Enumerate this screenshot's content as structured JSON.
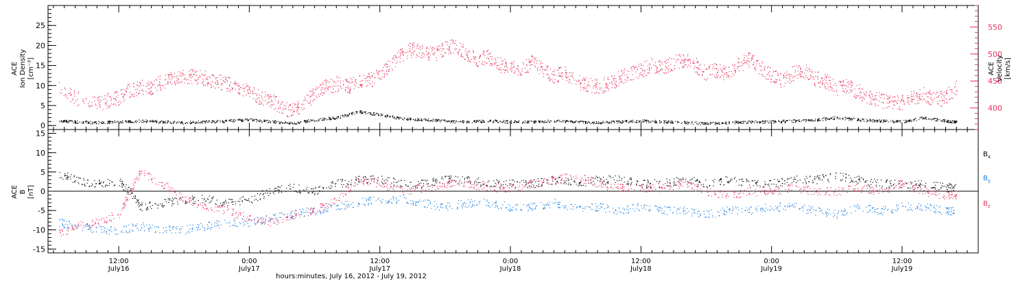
{
  "chart_data": [
    {
      "type": "scatter",
      "panel": "top",
      "left_axis": {
        "label_lines": [
          "ACE",
          "Ion Density",
          "[cm⁻³]"
        ],
        "ylim": [
          -1,
          30
        ],
        "ticks": [
          0,
          5,
          10,
          15,
          20,
          25
        ],
        "color": "#000000"
      },
      "right_axis": {
        "label_lines": [
          "ACE",
          "Velocity",
          "[km/s]"
        ],
        "ylim": [
          360,
          590
        ],
        "ticks": [
          400,
          450,
          500,
          550
        ],
        "color": "#e8315f"
      },
      "series": [
        {
          "color": "#e8315f",
          "axis": "right",
          "x": [
            6.5,
            8,
            10,
            11,
            12,
            13,
            14,
            15,
            16,
            17,
            18,
            19,
            20,
            21,
            22,
            23,
            24,
            25,
            26,
            27,
            28,
            29,
            30,
            31,
            32,
            33,
            34,
            35,
            36,
            37,
            38,
            39,
            40,
            41,
            42,
            43,
            44,
            45,
            46,
            47,
            48,
            49,
            50,
            51,
            52,
            53,
            54,
            55,
            56,
            57,
            58,
            59,
            60,
            61,
            62,
            63,
            64,
            65,
            66,
            67,
            68,
            69,
            70,
            71,
            72,
            73,
            74,
            75,
            76,
            77,
            78,
            79,
            80,
            81,
            82,
            83,
            84,
            85,
            86,
            87,
            88,
            89
          ],
          "y": [
            436,
            420,
            408,
            414,
            420,
            432,
            440,
            438,
            450,
            455,
            460,
            458,
            455,
            450,
            445,
            440,
            430,
            420,
            415,
            400,
            395,
            410,
            425,
            440,
            445,
            440,
            450,
            452,
            460,
            480,
            500,
            510,
            505,
            500,
            512,
            515,
            500,
            490,
            495,
            480,
            475,
            470,
            485,
            470,
            460,
            465,
            450,
            445,
            440,
            445,
            455,
            465,
            470,
            480,
            475,
            485,
            490,
            480,
            465,
            470,
            465,
            480,
            490,
            475,
            460,
            450,
            465,
            470,
            455,
            450,
            435,
            440,
            430,
            420,
            415,
            410,
            410,
            420,
            425,
            415,
            420,
            440
          ]
        },
        {
          "color": "#000000",
          "axis": "left",
          "x": [
            6.5,
            8,
            10,
            12,
            14,
            16,
            18,
            20,
            22,
            24,
            26,
            28,
            30,
            32,
            34,
            36,
            38,
            40,
            42,
            44,
            46,
            48,
            50,
            52,
            54,
            56,
            58,
            60,
            62,
            64,
            66,
            68,
            70,
            72,
            74,
            76,
            78,
            80,
            82,
            84,
            86,
            88,
            89
          ],
          "y": [
            1.2,
            1.0,
            0.8,
            1.0,
            1.2,
            1.0,
            0.8,
            1.0,
            1.2,
            1.5,
            1.0,
            0.6,
            1.5,
            2.0,
            3.5,
            2.8,
            1.8,
            1.5,
            1.2,
            1.0,
            1.2,
            1.0,
            1.0,
            1.2,
            1.0,
            0.8,
            1.0,
            1.2,
            1.0,
            0.8,
            0.6,
            0.8,
            1.0,
            1.0,
            1.2,
            1.5,
            2.0,
            1.5,
            1.2,
            1.0,
            2.0,
            1.2,
            1.0
          ]
        }
      ]
    },
    {
      "type": "scatter",
      "panel": "bottom",
      "left_axis": {
        "label_lines": [
          "ACE",
          "B",
          "[nT]"
        ],
        "ylim": [
          -16,
          16
        ],
        "ticks": [
          -15,
          -10,
          -5,
          0,
          5,
          10,
          15
        ],
        "color": "#000000"
      },
      "zero_line": true,
      "legend_position": "right",
      "series": [
        {
          "name": "Bx",
          "color": "#000000",
          "x": [
            6.5,
            8,
            10,
            12,
            13,
            14,
            16,
            18,
            20,
            22,
            24,
            26,
            28,
            30,
            32,
            34,
            36,
            38,
            40,
            42,
            44,
            46,
            48,
            50,
            52,
            54,
            56,
            58,
            60,
            62,
            64,
            66,
            68,
            70,
            72,
            74,
            76,
            78,
            80,
            82,
            84,
            86,
            88,
            89
          ],
          "y": [
            4.5,
            3.0,
            2.0,
            2.5,
            0,
            -4,
            -3,
            -2,
            -2,
            -3,
            -2,
            0,
            1,
            0,
            2,
            3,
            3,
            2,
            2,
            3,
            3,
            2,
            2,
            2,
            3,
            2,
            3,
            3,
            2,
            2,
            3,
            2,
            3,
            2,
            2,
            3,
            3,
            4,
            3,
            2,
            2,
            2,
            1,
            1
          ]
        },
        {
          "name": "By",
          "color": "#1a7fe0",
          "x": [
            6.5,
            8,
            10,
            12,
            14,
            16,
            18,
            20,
            22,
            24,
            26,
            28,
            30,
            32,
            34,
            36,
            38,
            40,
            42,
            44,
            46,
            48,
            50,
            52,
            54,
            56,
            58,
            60,
            62,
            64,
            66,
            68,
            70,
            72,
            74,
            76,
            78,
            80,
            82,
            84,
            86,
            88,
            89
          ],
          "y": [
            -8,
            -9,
            -10,
            -10,
            -9,
            -10,
            -10,
            -9,
            -8,
            -8,
            -7,
            -6,
            -5,
            -4,
            -3,
            -2,
            -2,
            -3,
            -4,
            -3,
            -3,
            -4,
            -4,
            -3,
            -4,
            -4,
            -5,
            -4,
            -5,
            -5,
            -6,
            -5,
            -5,
            -4,
            -4,
            -5,
            -6,
            -4,
            -5,
            -4,
            -4,
            -5,
            -5
          ]
        },
        {
          "name": "Bz",
          "color": "#e8315f",
          "x": [
            6.5,
            8,
            10,
            12,
            13,
            14,
            16,
            18,
            20,
            22,
            24,
            26,
            28,
            30,
            32,
            34,
            36,
            38,
            40,
            42,
            44,
            46,
            48,
            50,
            52,
            54,
            56,
            58,
            60,
            62,
            64,
            66,
            68,
            70,
            72,
            74,
            76,
            78,
            80,
            82,
            84,
            86,
            88,
            89
          ],
          "y": [
            -11,
            -9,
            -8,
            -6,
            0,
            5,
            2,
            -2,
            -4,
            -5,
            -7,
            -8,
            -6,
            -5,
            -2,
            3,
            2,
            0,
            1,
            2,
            2,
            1,
            1,
            2,
            3,
            4,
            2,
            1,
            1,
            1,
            2,
            0,
            -1,
            0,
            0,
            1,
            0,
            0,
            1,
            0,
            2,
            0,
            -1,
            -1
          ]
        }
      ]
    },
    {
      "type": "scatter",
      "panel": "time-axis",
      "xlim": [
        5.5,
        91
      ],
      "ticks": [
        {
          "x": 12,
          "time": "12:00",
          "date": "July16"
        },
        {
          "x": 24,
          "time": "0:00",
          "date": "July17"
        },
        {
          "x": 36,
          "time": "12:00",
          "date": "July17"
        },
        {
          "x": 48,
          "time": "0:00",
          "date": "July18"
        },
        {
          "x": 60,
          "time": "12:00",
          "date": "July18"
        },
        {
          "x": 72,
          "time": "0:00",
          "date": "July19"
        },
        {
          "x": 84,
          "time": "12:00",
          "date": "July19"
        }
      ],
      "xlabel": "hours:minutes, July 16, 2012 - July 19, 2012"
    }
  ],
  "legend": [
    {
      "base": "B",
      "sub": "x",
      "color": "#000000"
    },
    {
      "base": "B",
      "sub": "y",
      "color": "#1a7fe0"
    },
    {
      "base": "B",
      "sub": "z",
      "color": "#e8315f"
    }
  ]
}
